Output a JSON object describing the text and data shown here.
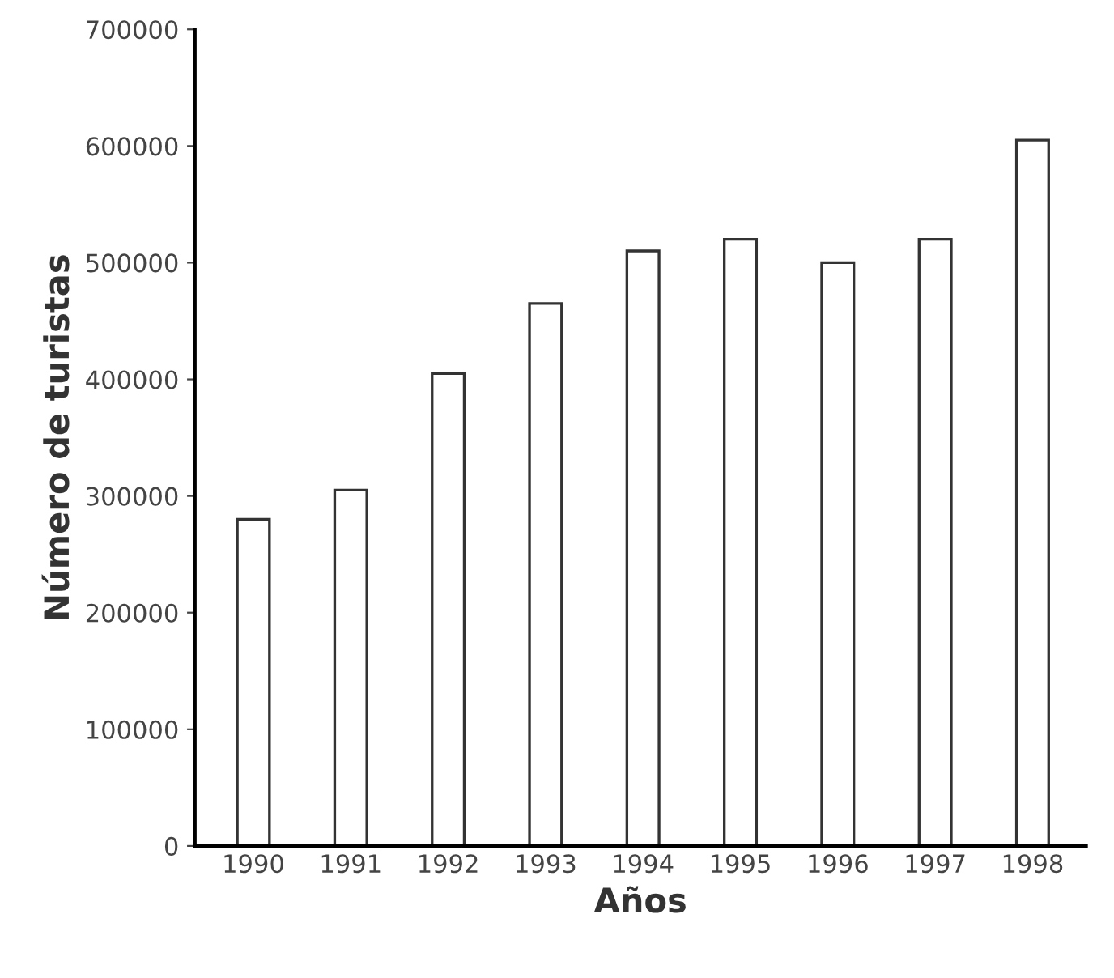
{
  "chart_data": {
    "type": "bar",
    "xlabel": "Años",
    "ylabel": "Número de turistas",
    "categories": [
      "1990",
      "1991",
      "1992",
      "1993",
      "1994",
      "1995",
      "1996",
      "1997",
      "1998"
    ],
    "values": [
      280000,
      305000,
      405000,
      465000,
      510000,
      520000,
      500000,
      520000,
      605000
    ],
    "color": "#ffffff",
    "ylim": [
      0,
      700000
    ],
    "yticks": [
      0,
      100000,
      200000,
      300000,
      400000,
      500000,
      600000,
      700000
    ],
    "grid": false
  }
}
